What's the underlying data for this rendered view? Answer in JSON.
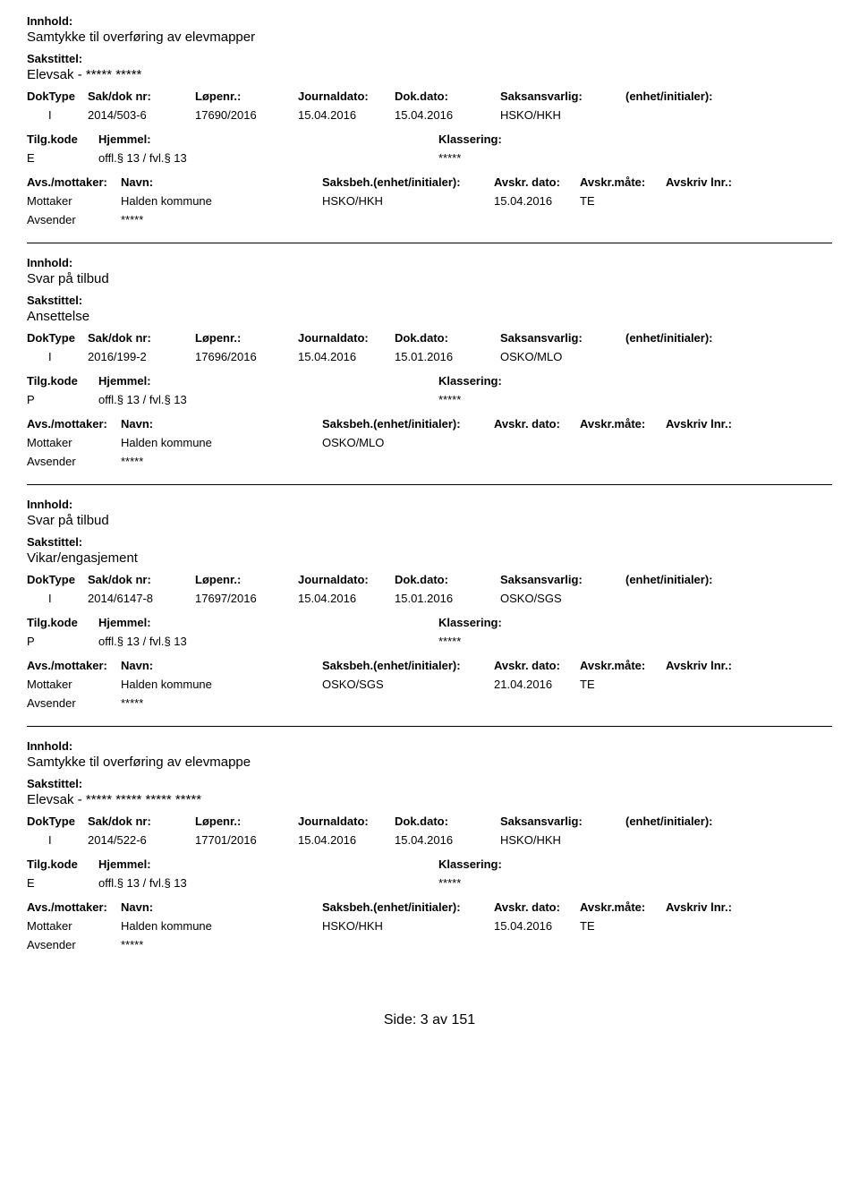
{
  "labels": {
    "innhold": "Innhold:",
    "sakstittel": "Sakstittel:",
    "doktype": "DokType",
    "sakdoknr": "Sak/dok nr:",
    "lopenr": "Løpenr.:",
    "journaldato": "Journaldato:",
    "dokdato": "Dok.dato:",
    "saksansvarlig": "Saksansvarlig:",
    "enhetinitialer": "(enhet/initialer):",
    "tilgkode": "Tilg.kode",
    "hjemmel": "Hjemmel:",
    "klassering": "Klassering:",
    "avsmottaker": "Avs./mottaker:",
    "navn": "Navn:",
    "saksbeh": "Saksbeh.(enhet/initialer):",
    "avskrdato": "Avskr. dato:",
    "avskrmate": "Avskr.måte:",
    "avskrivlnr": "Avskriv lnr.:",
    "mottaker": "Mottaker",
    "avsender": "Avsender"
  },
  "records": [
    {
      "innhold": "Samtykke til overføring av elevmapper",
      "sakstittel": "Elevsak - ***** *****",
      "doktype": "I",
      "sakdoknr": "2014/503-6",
      "lopenr": "17690/2016",
      "journaldato": "15.04.2016",
      "dokdato": "15.04.2016",
      "saksansvarlig": "HSKO/HKH",
      "tilgkode": "E",
      "hjemmel": "offl.§ 13 / fvl.§ 13",
      "klassering": "*****",
      "mottaker_navn": "Halden kommune",
      "mottaker_saksbeh": "HSKO/HKH",
      "mottaker_dato": "15.04.2016",
      "mottaker_mate": "TE",
      "avsender_navn": "*****"
    },
    {
      "innhold": "Svar på tilbud",
      "sakstittel": "Ansettelse",
      "doktype": "I",
      "sakdoknr": "2016/199-2",
      "lopenr": "17696/2016",
      "journaldato": "15.04.2016",
      "dokdato": "15.01.2016",
      "saksansvarlig": "OSKO/MLO",
      "tilgkode": "P",
      "hjemmel": "offl.§ 13 / fvl.§ 13",
      "klassering": "*****",
      "mottaker_navn": "Halden kommune",
      "mottaker_saksbeh": "OSKO/MLO",
      "mottaker_dato": "",
      "mottaker_mate": "",
      "avsender_navn": "*****"
    },
    {
      "innhold": "Svar på tilbud",
      "sakstittel": "Vikar/engasjement",
      "doktype": "I",
      "sakdoknr": "2014/6147-8",
      "lopenr": "17697/2016",
      "journaldato": "15.04.2016",
      "dokdato": "15.01.2016",
      "saksansvarlig": "OSKO/SGS",
      "tilgkode": "P",
      "hjemmel": "offl.§ 13 / fvl.§ 13",
      "klassering": "*****",
      "mottaker_navn": "Halden kommune",
      "mottaker_saksbeh": "OSKO/SGS",
      "mottaker_dato": "21.04.2016",
      "mottaker_mate": "TE",
      "avsender_navn": "*****"
    },
    {
      "innhold": "Samtykke til overføring av elevmappe",
      "sakstittel": "Elevsak - ***** ***** ***** *****",
      "doktype": "I",
      "sakdoknr": "2014/522-6",
      "lopenr": "17701/2016",
      "journaldato": "15.04.2016",
      "dokdato": "15.04.2016",
      "saksansvarlig": "HSKO/HKH",
      "tilgkode": "E",
      "hjemmel": "offl.§ 13 / fvl.§ 13",
      "klassering": "*****",
      "mottaker_navn": "Halden kommune",
      "mottaker_saksbeh": "HSKO/HKH",
      "mottaker_dato": "15.04.2016",
      "mottaker_mate": "TE",
      "avsender_navn": "*****"
    }
  ],
  "footer": {
    "side_label": "Side:",
    "page": "3",
    "av": "av",
    "total": "151"
  }
}
